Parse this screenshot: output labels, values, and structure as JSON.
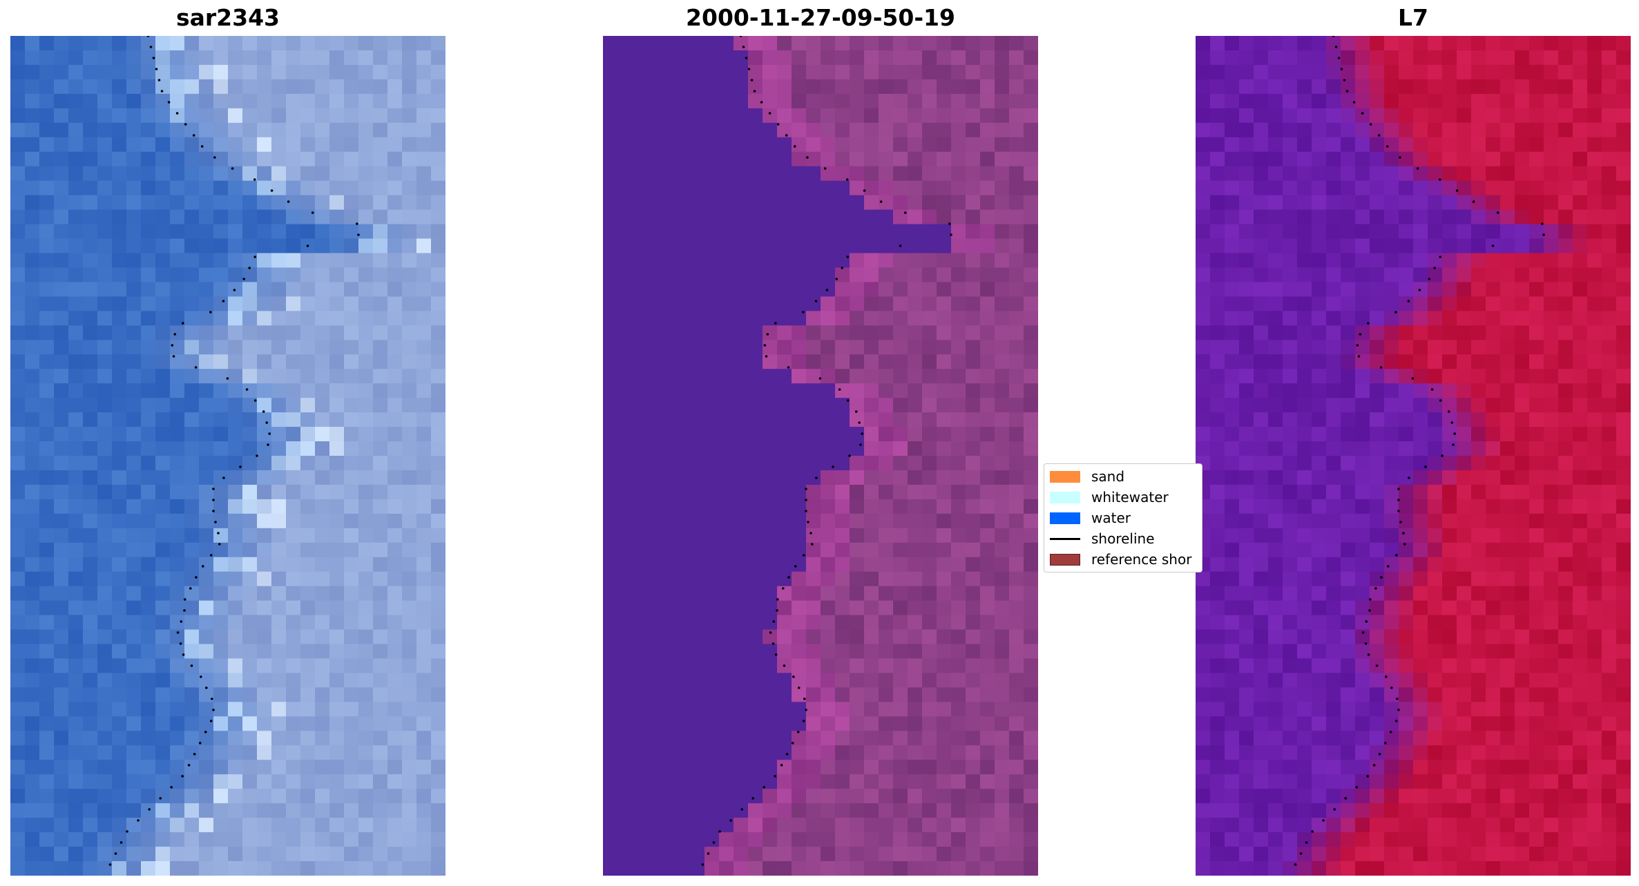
{
  "panels": [
    {
      "title": "sar2343",
      "palette": "rgb"
    },
    {
      "title": "2000-11-27-09-50-19",
      "palette": "classified"
    },
    {
      "title": "L7",
      "palette": "index"
    }
  ],
  "legend": {
    "items": [
      {
        "label": "sand",
        "kind": "patch",
        "color": "#ff8c3c"
      },
      {
        "label": "whitewater",
        "kind": "patch",
        "color": "#c8ffff"
      },
      {
        "label": "water",
        "kind": "patch",
        "color": "#0064ff"
      },
      {
        "label": "shoreline",
        "kind": "line",
        "color": "#000000"
      },
      {
        "label": "reference shor",
        "kind": "patch",
        "color": "#a03c3c"
      }
    ]
  },
  "colors": {
    "water_class": "#54249a",
    "sand_class": "#8c3f86",
    "index_water": "#6a1eaa",
    "index_land": "#c41444",
    "rgb_water": "#3a6ec4",
    "rgb_land": "#8fa6d9"
  }
}
